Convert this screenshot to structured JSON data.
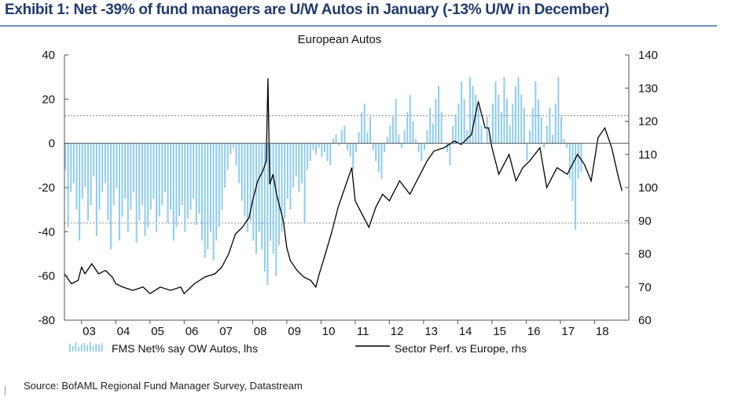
{
  "exhibit": {
    "title": "Exhibit 1: Net -39% of fund managers are U/W Autos in January (-13% U/W in December)",
    "source": "Source:  BofAML Regional Fund Manager Survey, Datastream"
  },
  "chart_data": {
    "type": "bar",
    "title": "European Autos",
    "x_tick_labels": [
      "03",
      "04",
      "05",
      "06",
      "07",
      "08",
      "09",
      "10",
      "11",
      "12",
      "13",
      "14",
      "15",
      "16",
      "17",
      "18"
    ],
    "y_left": {
      "ylim": [
        -80,
        40
      ],
      "ticks": [
        40,
        20,
        0,
        -20,
        -40,
        -60,
        -80
      ],
      "tick_labels": [
        "40",
        "20",
        "0",
        "-20",
        "-40",
        "-60",
        "-80"
      ]
    },
    "y_right": {
      "ylim": [
        60,
        140
      ],
      "ticks": [
        140,
        130,
        120,
        110,
        100,
        90,
        80,
        70,
        60
      ],
      "tick_labels": [
        "140",
        "130",
        "120",
        "110",
        "100",
        "90",
        "80",
        "70",
        "60"
      ]
    },
    "reference_lines_lhs": [
      12.5,
      -36
    ],
    "colors": {
      "bars": "#8ecbf0",
      "line": "#000000",
      "reference": "#888888",
      "axis": "#555555"
    },
    "series": [
      {
        "name": "FMS Net% say OW Autos, lhs",
        "type": "bar",
        "axis": "left",
        "x_start": 2002.5,
        "x_step_months": 1,
        "values": [
          -12,
          -38,
          -22,
          -18,
          -30,
          -44,
          -25,
          -20,
          -35,
          -28,
          -15,
          -42,
          -30,
          -22,
          -18,
          -35,
          -48,
          -28,
          -20,
          -44,
          -33,
          -25,
          -40,
          -30,
          -22,
          -45,
          -35,
          -28,
          -42,
          -38,
          -30,
          -25,
          -40,
          -33,
          -28,
          -22,
          -36,
          -30,
          -44,
          -38,
          -33,
          -28,
          -40,
          -34,
          -30,
          -25,
          -37,
          -32,
          -44,
          -52,
          -48,
          -40,
          -53,
          -44,
          -38,
          -30,
          -20,
          -12,
          -5,
          -2,
          -10,
          -18,
          -26,
          -33,
          -40,
          -35,
          -44,
          -50,
          -40,
          -48,
          -58,
          -64,
          -44,
          -50,
          -60,
          -46,
          -40,
          -34,
          -25,
          -30,
          -20,
          -15,
          -22,
          -18,
          -36,
          -12,
          -8,
          -3,
          -5,
          -2,
          -6,
          -4,
          -8,
          -10,
          2,
          4,
          -1,
          6,
          8,
          -3,
          -6,
          -12,
          -4,
          5,
          14,
          18,
          5,
          12,
          -3,
          -8,
          -13,
          -16,
          -4,
          3,
          8,
          12,
          20,
          4,
          -2,
          6,
          14,
          22,
          10,
          2,
          -4,
          -8,
          -3,
          6,
          16,
          9,
          20,
          26,
          14,
          0,
          -4,
          -10,
          8,
          13,
          18,
          28,
          20,
          6,
          30,
          26,
          22,
          16,
          8,
          0,
          12,
          4,
          18,
          28,
          22,
          14,
          30,
          20,
          8,
          18,
          26,
          30,
          22,
          16,
          -8,
          6,
          16,
          28,
          20,
          12,
          -2,
          8,
          16,
          4,
          18,
          30,
          12,
          2,
          -2,
          -16,
          -26,
          -39,
          -16,
          -13
        ],
        "ylim": [
          -80,
          40
        ]
      },
      {
        "name": "Sector Perf. vs Europe, rhs",
        "type": "line",
        "axis": "right",
        "x": [
          2002.5,
          2002.7,
          2002.9,
          2003.0,
          2003.1,
          2003.3,
          2003.5,
          2003.7,
          2003.9,
          2004.0,
          2004.2,
          2004.5,
          2004.8,
          2005.0,
          2005.3,
          2005.6,
          2005.9,
          2006.0,
          2006.3,
          2006.6,
          2006.9,
          2007.1,
          2007.3,
          2007.5,
          2007.7,
          2007.9,
          2008.0,
          2008.15,
          2008.3,
          2008.4,
          2008.45,
          2008.5,
          2008.6,
          2008.7,
          2008.8,
          2008.9,
          2009.0,
          2009.1,
          2009.3,
          2009.5,
          2009.7,
          2009.85,
          2009.95,
          2010.1,
          2010.3,
          2010.5,
          2010.7,
          2010.9,
          2011.0,
          2011.2,
          2011.4,
          2011.6,
          2011.8,
          2012.0,
          2012.3,
          2012.6,
          2012.9,
          2013.1,
          2013.3,
          2013.6,
          2013.9,
          2014.1,
          2014.4,
          2014.6,
          2014.8,
          2014.9,
          2015.0,
          2015.2,
          2015.5,
          2015.7,
          2015.9,
          2016.1,
          2016.4,
          2016.6,
          2016.9,
          2017.2,
          2017.5,
          2017.7,
          2017.9,
          2018.1,
          2018.3,
          2018.5,
          2018.7,
          2018.8
        ],
        "values": [
          74,
          71,
          72,
          76,
          74,
          77,
          74,
          75,
          73,
          71,
          70,
          69,
          70,
          68,
          70,
          69,
          70,
          68,
          71,
          73,
          74,
          76,
          80,
          86,
          88,
          91,
          96,
          102,
          105,
          108,
          133,
          101,
          104,
          98,
          94,
          90,
          82,
          78,
          75,
          73,
          72,
          70,
          74,
          79,
          86,
          94,
          100,
          106,
          96,
          92,
          88,
          94,
          98,
          96,
          102,
          98,
          104,
          108,
          111,
          112,
          114,
          113,
          116,
          126,
          118,
          118,
          112,
          104,
          110,
          102,
          106,
          108,
          112,
          100,
          106,
          104,
          110,
          107,
          102,
          115,
          118,
          112,
          103,
          99
        ],
        "ylim": [
          60,
          140
        ]
      }
    ],
    "legend": {
      "position": "bottom",
      "entries": [
        "FMS Net% say OW Autos, lhs",
        "Sector Perf. vs Europe, rhs"
      ]
    }
  }
}
